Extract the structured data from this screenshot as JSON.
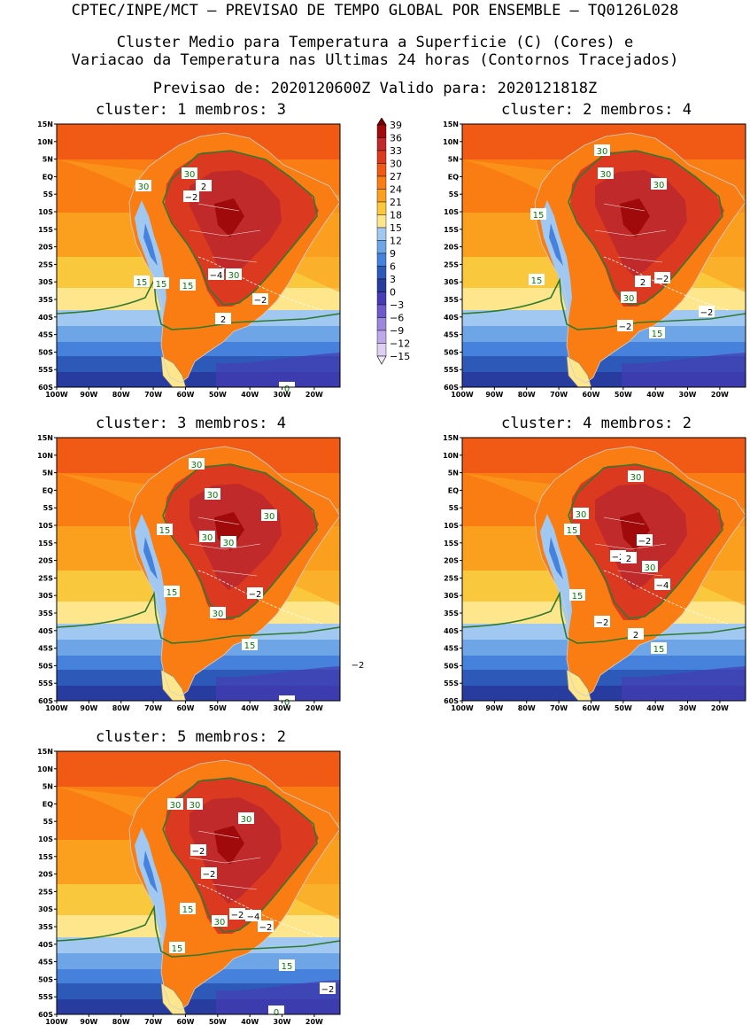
{
  "header": {
    "line1": "CPTEC/INPE/MCT – PREVISAO DE TEMPO GLOBAL POR ENSEMBLE – TQ0126L028",
    "line2": "Cluster Medio para Temperatura a Superficie (C) (Cores) e",
    "line3": "Variacao da Temperatura nas Ultimas 24 horas (Contornos Tracejados)",
    "line4": "Previsao de: 2020120600Z   Valido para: 2020121818Z"
  },
  "axes": {
    "lat_labels": [
      "15N",
      "10N",
      "5N",
      "EQ",
      "5S",
      "10S",
      "15S",
      "20S",
      "25S",
      "30S",
      "35S",
      "40S",
      "45S",
      "50S",
      "55S",
      "60S"
    ],
    "lon_labels": [
      "100W",
      "90W",
      "80W",
      "70W",
      "60W",
      "50W",
      "40W",
      "30W",
      "20W"
    ]
  },
  "colorbar": {
    "levels": [
      "39",
      "36",
      "33",
      "30",
      "27",
      "24",
      "21",
      "18",
      "15",
      "12",
      "9",
      "6",
      "3",
      "0",
      "−3",
      "−6",
      "−9",
      "−12",
      "−15"
    ],
    "colors": [
      "#7a0000",
      "#a10a0a",
      "#c02a2a",
      "#dc3a20",
      "#f05a14",
      "#fa7d14",
      "#faa01e",
      "#fac83c",
      "#fde68c",
      "#a0c8f0",
      "#6ea5e6",
      "#4682dc",
      "#2d5ab9",
      "#283ca0",
      "#463cb4",
      "#6e5ac8",
      "#9b87dc",
      "#bcaae8",
      "#ddd0f3",
      "#f0e8fa"
    ]
  },
  "panels": [
    {
      "title": "cluster: 1   membros: 3",
      "contour_labels": [
        "30",
        "30",
        "15",
        "15",
        "30",
        "15",
        "0"
      ],
      "diff_labels": [
        "2",
        "−2",
        "−4",
        "−2",
        "2"
      ]
    },
    {
      "title": "cluster: 2   membros: 4",
      "contour_labels": [
        "30",
        "30",
        "30",
        "15",
        "15",
        "30",
        "15"
      ],
      "diff_labels": [
        "2",
        "−2",
        "−2",
        "−2"
      ]
    },
    {
      "title": "cluster: 3   membros: 4",
      "contour_labels": [
        "30",
        "30",
        "30",
        "15",
        "30",
        "30",
        "15",
        "30",
        "15",
        "0"
      ],
      "diff_labels": [
        "−2",
        "−2"
      ]
    },
    {
      "title": "cluster: 4   membros: 2",
      "contour_labels": [
        "30",
        "30",
        "15",
        "30",
        "15",
        "15",
        "0"
      ],
      "diff_labels": [
        "−2",
        "−2",
        "2",
        "−4",
        "−2",
        "2"
      ]
    },
    {
      "title": "cluster: 5   membros: 2",
      "contour_labels": [
        "30",
        "30",
        "30",
        "15",
        "30",
        "15",
        "15",
        "0"
      ],
      "diff_labels": [
        "−2",
        "−2",
        "−2",
        "−4",
        "−2",
        "−2"
      ]
    }
  ]
}
